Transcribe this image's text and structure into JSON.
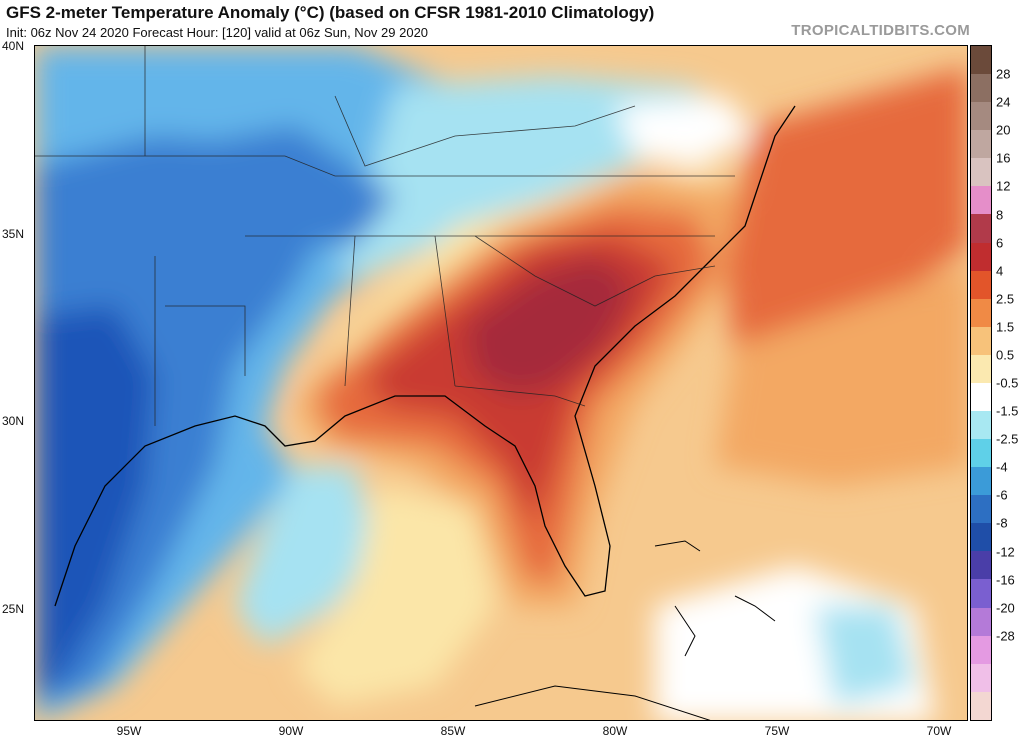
{
  "header": {
    "title": "GFS 2-meter Temperature Anomaly (°C) (based on CFSR 1981-2010 Climatology)",
    "subtitle": "Init: 06z Nov 24 2020   Forecast Hour: [120]   valid at 06z Sun, Nov 29 2020",
    "brand": "TROPICALTIDBITS.COM"
  },
  "axes": {
    "latitude_labels": [
      "40N",
      "35N",
      "30N",
      "25N"
    ],
    "longitude_labels": [
      "95W",
      "90W",
      "85W",
      "80W",
      "75W",
      "70W"
    ]
  },
  "colorbar": {
    "labels": [
      "28",
      "24",
      "20",
      "16",
      "12",
      "8",
      "6",
      "4",
      "2.5",
      "1.5",
      "0.5",
      "-0.5",
      "-1.5",
      "-2.5",
      "-4",
      "-6",
      "-8",
      "-12",
      "-16",
      "-20",
      "-28"
    ],
    "colors": [
      "#6b4a3a",
      "#8c6f62",
      "#a58a80",
      "#bfa7a0",
      "#d9c3c0",
      "#e58ec9",
      "#b13a4a",
      "#c02d2f",
      "#e2552a",
      "#f08a45",
      "#f7c27a",
      "#fbe9b0",
      "#ffffff",
      "#a8e8f2",
      "#5fd0e8",
      "#3b9bd8",
      "#2d6fc2",
      "#1f4ea8",
      "#4a3ea8",
      "#7a5fd0",
      "#b47ad8",
      "#e49ae2",
      "#f0bfe8",
      "#f3d7d2"
    ]
  },
  "map": {
    "colors": {
      "ocean_base": "#f6c98e",
      "cold_deep": "#1f55b8",
      "cold": "#3a7fd2",
      "cool": "#63b5ea",
      "chill": "#a6e2f2",
      "neutral": "#ffffff",
      "mild": "#fbe6a8",
      "warm": "#f3a863",
      "warmer": "#e66a3c",
      "hot": "#c93a32",
      "hottest": "#a52a3a"
    }
  }
}
